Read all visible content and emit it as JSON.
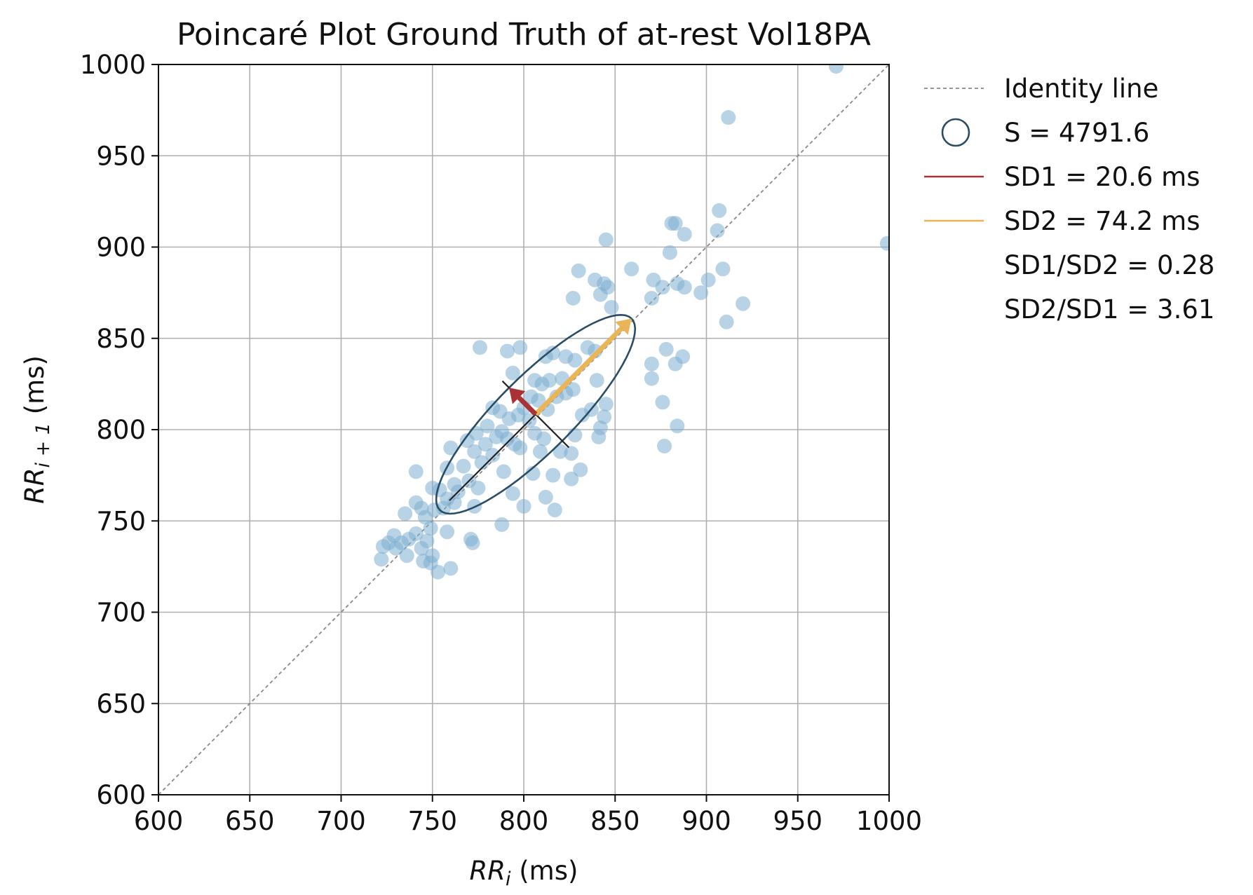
{
  "chart_data": {
    "type": "scatter",
    "title": "Poincaré Plot Ground Truth of at-rest Vol18PA",
    "xlabel": {
      "main": "RR",
      "sub": "i",
      "unit": " (ms)"
    },
    "ylabel": {
      "main": "RR",
      "sub": "i + 1",
      "unit": " (ms)"
    },
    "xlim": [
      600,
      1000
    ],
    "ylim": [
      600,
      1000
    ],
    "xticks": [
      600,
      650,
      700,
      750,
      800,
      850,
      900,
      950,
      1000
    ],
    "yticks": [
      600,
      650,
      700,
      750,
      800,
      850,
      900,
      950,
      1000
    ],
    "grid": true,
    "legend_position": "outside-right",
    "colors": {
      "points": "#7eaed0",
      "ellipse": "#2a4d66",
      "sd1": "#a93236",
      "sd2": "#e9b556",
      "identity": "#888888",
      "axis_lines": "#222222"
    },
    "center": [
      806.5,
      808.4
    ],
    "sd1": 20.6,
    "sd2": 74.2,
    "ellipse_area": 4791.6,
    "legend": [
      {
        "kind": "identity",
        "label": "Identity line"
      },
      {
        "kind": "ellipse",
        "label": "S = 4791.6"
      },
      {
        "kind": "sd1",
        "label": "SD1 = 20.6 ms"
      },
      {
        "kind": "sd2",
        "label": "SD2 = 74.2 ms"
      },
      {
        "kind": "text",
        "label": "SD1/SD2 = 0.28"
      },
      {
        "kind": "text",
        "label": "SD2/SD1 = 3.61"
      }
    ],
    "points": [
      [
        971,
        999
      ],
      [
        912,
        971
      ],
      [
        999,
        902
      ],
      [
        907,
        920
      ],
      [
        906,
        909
      ],
      [
        881,
        913
      ],
      [
        883,
        913
      ],
      [
        888,
        907
      ],
      [
        845,
        904
      ],
      [
        880,
        897
      ],
      [
        830,
        887
      ],
      [
        859,
        888
      ],
      [
        909,
        888
      ],
      [
        871,
        882
      ],
      [
        884,
        880
      ],
      [
        901,
        882
      ],
      [
        839,
        882
      ],
      [
        844,
        880
      ],
      [
        846,
        878
      ],
      [
        876,
        878
      ],
      [
        888,
        878
      ],
      [
        897,
        875
      ],
      [
        842,
        874
      ],
      [
        827,
        872
      ],
      [
        920,
        869
      ],
      [
        848,
        867
      ],
      [
        870,
        872
      ],
      [
        911,
        859
      ],
      [
        776,
        845
      ],
      [
        791,
        843
      ],
      [
        798,
        845
      ],
      [
        812,
        840
      ],
      [
        816,
        842
      ],
      [
        823,
        840
      ],
      [
        828,
        838
      ],
      [
        835,
        845
      ],
      [
        839,
        843
      ],
      [
        878,
        844
      ],
      [
        870,
        836
      ],
      [
        887,
        840
      ],
      [
        883,
        836
      ],
      [
        821,
        828
      ],
      [
        814,
        827
      ],
      [
        806,
        827
      ],
      [
        810,
        825
      ],
      [
        840,
        827
      ],
      [
        870,
        828
      ],
      [
        794,
        831
      ],
      [
        804,
        818
      ],
      [
        808,
        816
      ],
      [
        818,
        818
      ],
      [
        813,
        811
      ],
      [
        823,
        820
      ],
      [
        827,
        822
      ],
      [
        837,
        811
      ],
      [
        845,
        814
      ],
      [
        832,
        808
      ],
      [
        844,
        807
      ],
      [
        876,
        815
      ],
      [
        783,
        812
      ],
      [
        787,
        810
      ],
      [
        792,
        806
      ],
      [
        797,
        808
      ],
      [
        800,
        812
      ],
      [
        803,
        805
      ],
      [
        780,
        802
      ],
      [
        788,
        799
      ],
      [
        791,
        795
      ],
      [
        785,
        796
      ],
      [
        774,
        798
      ],
      [
        769,
        794
      ],
      [
        779,
        792
      ],
      [
        795,
        792
      ],
      [
        806,
        798
      ],
      [
        811,
        795
      ],
      [
        828,
        797
      ],
      [
        841,
        796
      ],
      [
        842,
        801
      ],
      [
        884,
        802
      ],
      [
        760,
        790
      ],
      [
        773,
        788
      ],
      [
        783,
        786
      ],
      [
        798,
        790
      ],
      [
        809,
        788
      ],
      [
        820,
        788
      ],
      [
        826,
        787
      ],
      [
        877,
        791
      ],
      [
        767,
        780
      ],
      [
        777,
        782
      ],
      [
        758,
        779
      ],
      [
        789,
        777
      ],
      [
        805,
        776
      ],
      [
        816,
        775
      ],
      [
        831,
        778
      ],
      [
        741,
        777
      ],
      [
        762,
        770
      ],
      [
        770,
        772
      ],
      [
        775,
        768
      ],
      [
        794,
        765
      ],
      [
        764,
        766
      ],
      [
        750,
        768
      ],
      [
        754,
        767
      ],
      [
        826,
        773
      ],
      [
        758,
        762
      ],
      [
        762,
        760
      ],
      [
        773,
        758
      ],
      [
        800,
        758
      ],
      [
        812,
        763
      ],
      [
        817,
        756
      ],
      [
        756,
        757
      ],
      [
        741,
        760
      ],
      [
        744,
        757
      ],
      [
        751,
        756
      ],
      [
        735,
        754
      ],
      [
        746,
        752
      ],
      [
        749,
        746
      ],
      [
        788,
        748
      ],
      [
        771,
        740
      ],
      [
        772,
        738
      ],
      [
        729,
        742
      ],
      [
        733,
        738
      ],
      [
        737,
        740
      ],
      [
        741,
        743
      ],
      [
        726,
        738
      ],
      [
        723,
        736
      ],
      [
        730,
        735
      ],
      [
        744,
        735
      ],
      [
        750,
        731
      ],
      [
        758,
        744
      ],
      [
        722,
        729
      ],
      [
        745,
        728
      ],
      [
        749,
        727
      ],
      [
        753,
        722
      ],
      [
        760,
        724
      ],
      [
        736,
        731
      ],
      [
        747,
        739
      ]
    ]
  }
}
